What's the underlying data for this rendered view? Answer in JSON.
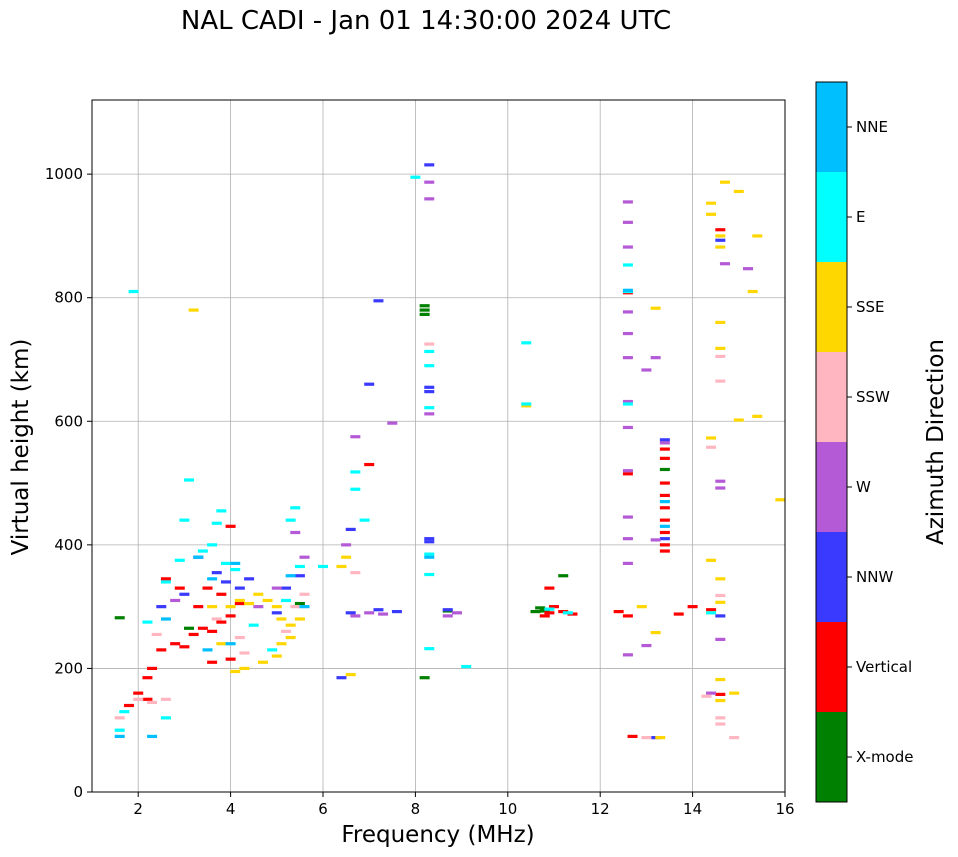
{
  "chart_data": {
    "type": "scatter",
    "title": "NAL CADI - Jan 01 14:30:00 2024 UTC",
    "xlabel": "Frequency (MHz)",
    "ylabel": "Virtual height (km)",
    "xlim": [
      1,
      16
    ],
    "ylim": [
      0,
      1120
    ],
    "xticks": [
      2,
      4,
      6,
      8,
      10,
      12,
      14,
      16
    ],
    "yticks": [
      0,
      200,
      400,
      600,
      800,
      1000
    ],
    "grid": true,
    "colorbar": {
      "label": "Azimuth Direction",
      "categories": [
        {
          "name": "X-mode",
          "color": "#008000"
        },
        {
          "name": "Vertical",
          "color": "#ff0000"
        },
        {
          "name": "NNW",
          "color": "#3a3aff"
        },
        {
          "name": "W",
          "color": "#b45ad6"
        },
        {
          "name": "SSW",
          "color": "#ffb6c1"
        },
        {
          "name": "SSE",
          "color": "#ffd700"
        },
        {
          "name": "E",
          "color": "#00ffff"
        },
        {
          "name": "NNE",
          "color": "#00bfff"
        }
      ]
    },
    "series": [
      {
        "name": "X-mode",
        "points": [
          [
            1.6,
            282
          ],
          [
            8.2,
            787
          ],
          [
            8.2,
            780
          ],
          [
            8.2,
            773
          ],
          [
            8.2,
            185
          ],
          [
            8.7,
            293
          ],
          [
            10.7,
            298
          ],
          [
            10.8,
            293
          ],
          [
            11.2,
            350
          ],
          [
            13.4,
            522
          ],
          [
            3.1,
            265
          ],
          [
            5.5,
            305
          ],
          [
            10.6,
            292
          ]
        ]
      },
      {
        "name": "Vertical",
        "points": [
          [
            1.8,
            140
          ],
          [
            2.0,
            160
          ],
          [
            2.2,
            185
          ],
          [
            2.3,
            200
          ],
          [
            2.5,
            230
          ],
          [
            2.8,
            240
          ],
          [
            3.0,
            235
          ],
          [
            3.2,
            255
          ],
          [
            3.4,
            265
          ],
          [
            3.6,
            260
          ],
          [
            3.8,
            275
          ],
          [
            4.0,
            285
          ],
          [
            4.0,
            430
          ],
          [
            3.5,
            330
          ],
          [
            3.8,
            320
          ],
          [
            4.2,
            305
          ],
          [
            2.6,
            345
          ],
          [
            2.9,
            330
          ],
          [
            3.3,
            300
          ],
          [
            3.6,
            210
          ],
          [
            4.0,
            215
          ],
          [
            10.8,
            285
          ],
          [
            10.9,
            290
          ],
          [
            11.0,
            300
          ],
          [
            11.2,
            292
          ],
          [
            11.4,
            288
          ],
          [
            10.9,
            330
          ],
          [
            12.4,
            292
          ],
          [
            12.6,
            285
          ],
          [
            12.6,
            808
          ],
          [
            12.6,
            515
          ],
          [
            13.4,
            390
          ],
          [
            13.4,
            400
          ],
          [
            13.4,
            420
          ],
          [
            13.4,
            440
          ],
          [
            13.4,
            460
          ],
          [
            13.4,
            480
          ],
          [
            13.4,
            500
          ],
          [
            13.4,
            540
          ],
          [
            13.4,
            555
          ],
          [
            13.7,
            288
          ],
          [
            14.0,
            300
          ],
          [
            14.4,
            295
          ],
          [
            14.6,
            910
          ],
          [
            14.6,
            158
          ],
          [
            12.7,
            90
          ],
          [
            7.0,
            530
          ],
          [
            2.2,
            150
          ]
        ]
      },
      {
        "name": "NNW",
        "points": [
          [
            8.3,
            1015
          ],
          [
            8.3,
            655
          ],
          [
            8.3,
            648
          ],
          [
            8.3,
            410
          ],
          [
            8.3,
            405
          ],
          [
            7.2,
            795
          ],
          [
            7.0,
            660
          ],
          [
            6.6,
            425
          ],
          [
            6.6,
            290
          ],
          [
            7.2,
            295
          ],
          [
            7.6,
            292
          ],
          [
            8.7,
            295
          ],
          [
            14.6,
            285
          ],
          [
            14.6,
            893
          ],
          [
            2.5,
            300
          ],
          [
            3.0,
            320
          ],
          [
            3.3,
            380
          ],
          [
            3.7,
            355
          ],
          [
            3.9,
            340
          ],
          [
            4.2,
            330
          ],
          [
            4.4,
            345
          ],
          [
            5.0,
            290
          ],
          [
            5.2,
            330
          ],
          [
            5.5,
            350
          ],
          [
            6.4,
            185
          ],
          [
            13.4,
            570
          ],
          [
            13.4,
            410
          ],
          [
            13.2,
            88
          ]
        ]
      },
      {
        "name": "W",
        "points": [
          [
            8.3,
            987
          ],
          [
            8.3,
            960
          ],
          [
            8.3,
            612
          ],
          [
            7.5,
            597
          ],
          [
            6.7,
            575
          ],
          [
            6.5,
            400
          ],
          [
            6.7,
            285
          ],
          [
            7.0,
            290
          ],
          [
            7.3,
            288
          ],
          [
            8.7,
            285
          ],
          [
            8.9,
            290
          ],
          [
            12.6,
            955
          ],
          [
            12.6,
            922
          ],
          [
            12.6,
            882
          ],
          [
            12.6,
            777
          ],
          [
            12.6,
            742
          ],
          [
            12.6,
            703
          ],
          [
            12.6,
            632
          ],
          [
            12.6,
            590
          ],
          [
            12.6,
            520
          ],
          [
            12.6,
            445
          ],
          [
            12.6,
            410
          ],
          [
            12.6,
            370
          ],
          [
            12.6,
            222
          ],
          [
            13.0,
            683
          ],
          [
            13.2,
            703
          ],
          [
            13.4,
            565
          ],
          [
            14.7,
            855
          ],
          [
            15.2,
            847
          ],
          [
            14.6,
            503
          ],
          [
            14.6,
            492
          ],
          [
            14.6,
            247
          ],
          [
            14.4,
            160
          ],
          [
            13.2,
            408
          ],
          [
            13.0,
            237
          ],
          [
            5.4,
            420
          ],
          [
            5.6,
            380
          ],
          [
            5.0,
            330
          ],
          [
            4.6,
            300
          ],
          [
            2.8,
            310
          ]
        ]
      },
      {
        "name": "SSW",
        "points": [
          [
            1.6,
            120
          ],
          [
            2.0,
            150
          ],
          [
            2.3,
            145
          ],
          [
            2.6,
            150
          ],
          [
            4.2,
            250
          ],
          [
            4.3,
            225
          ],
          [
            3.7,
            280
          ],
          [
            5.2,
            260
          ],
          [
            5.4,
            300
          ],
          [
            5.6,
            320
          ],
          [
            6.7,
            355
          ],
          [
            8.3,
            725
          ],
          [
            14.4,
            558
          ],
          [
            14.6,
            705
          ],
          [
            14.6,
            665
          ],
          [
            14.6,
            318
          ],
          [
            14.6,
            120
          ],
          [
            14.6,
            110
          ],
          [
            14.9,
            88
          ],
          [
            13.0,
            88
          ],
          [
            14.3,
            155
          ],
          [
            2.4,
            255
          ]
        ]
      },
      {
        "name": "SSE",
        "points": [
          [
            3.2,
            780
          ],
          [
            4.1,
            195
          ],
          [
            4.3,
            200
          ],
          [
            4.0,
            300
          ],
          [
            4.2,
            310
          ],
          [
            4.4,
            305
          ],
          [
            4.6,
            320
          ],
          [
            4.8,
            310
          ],
          [
            5.0,
            300
          ],
          [
            5.1,
            280
          ],
          [
            5.3,
            270
          ],
          [
            5.1,
            240
          ],
          [
            5.3,
            250
          ],
          [
            5.0,
            220
          ],
          [
            4.7,
            210
          ],
          [
            3.8,
            240
          ],
          [
            3.6,
            300
          ],
          [
            6.5,
            380
          ],
          [
            6.6,
            190
          ],
          [
            6.4,
            365
          ],
          [
            12.9,
            300
          ],
          [
            13.2,
            783
          ],
          [
            13.2,
            258
          ],
          [
            13.3,
            88
          ],
          [
            10.4,
            625
          ],
          [
            14.4,
            953
          ],
          [
            14.4,
            935
          ],
          [
            14.7,
            987
          ],
          [
            15.0,
            972
          ],
          [
            15.4,
            900
          ],
          [
            15.3,
            810
          ],
          [
            14.6,
            900
          ],
          [
            14.6,
            882
          ],
          [
            14.6,
            760
          ],
          [
            14.6,
            718
          ],
          [
            14.6,
            345
          ],
          [
            14.6,
            307
          ],
          [
            14.6,
            182
          ],
          [
            14.6,
            148
          ],
          [
            14.4,
            573
          ],
          [
            14.4,
            375
          ],
          [
            14.4,
            290
          ],
          [
            15.0,
            602
          ],
          [
            15.4,
            608
          ],
          [
            15.9,
            473
          ],
          [
            14.9,
            160
          ],
          [
            5.5,
            280
          ]
        ]
      },
      {
        "name": "E",
        "points": [
          [
            1.9,
            810
          ],
          [
            8.0,
            995
          ],
          [
            10.4,
            727
          ],
          [
            10.4,
            628
          ],
          [
            8.3,
            713
          ],
          [
            8.3,
            690
          ],
          [
            8.3,
            622
          ],
          [
            8.3,
            385
          ],
          [
            8.3,
            352
          ],
          [
            8.3,
            232
          ],
          [
            9.1,
            203
          ],
          [
            6.7,
            518
          ],
          [
            6.7,
            490
          ],
          [
            6.9,
            440
          ],
          [
            6.0,
            365
          ],
          [
            5.4,
            460
          ],
          [
            5.3,
            440
          ],
          [
            3.8,
            455
          ],
          [
            3.7,
            435
          ],
          [
            3.1,
            505
          ],
          [
            3.0,
            440
          ],
          [
            2.6,
            120
          ],
          [
            1.6,
            100
          ],
          [
            1.7,
            130
          ],
          [
            2.2,
            275
          ],
          [
            2.6,
            340
          ],
          [
            2.9,
            375
          ],
          [
            3.4,
            390
          ],
          [
            3.6,
            400
          ],
          [
            3.9,
            370
          ],
          [
            4.1,
            360
          ],
          [
            4.5,
            270
          ],
          [
            4.9,
            230
          ],
          [
            5.2,
            310
          ],
          [
            5.5,
            365
          ],
          [
            12.6,
            810
          ],
          [
            12.6,
            853
          ],
          [
            12.6,
            628
          ],
          [
            14.4,
            290
          ],
          [
            10.9,
            296
          ],
          [
            11.3,
            290
          ]
        ]
      },
      {
        "name": "NNE",
        "points": [
          [
            1.6,
            90
          ],
          [
            2.3,
            90
          ],
          [
            3.3,
            380
          ],
          [
            3.6,
            345
          ],
          [
            2.6,
            280
          ],
          [
            3.5,
            230
          ],
          [
            4.1,
            370
          ],
          [
            4.0,
            240
          ],
          [
            5.3,
            350
          ],
          [
            5.6,
            300
          ],
          [
            8.3,
            380
          ],
          [
            12.6,
            812
          ],
          [
            13.4,
            430
          ],
          [
            13.4,
            470
          ]
        ]
      }
    ]
  }
}
